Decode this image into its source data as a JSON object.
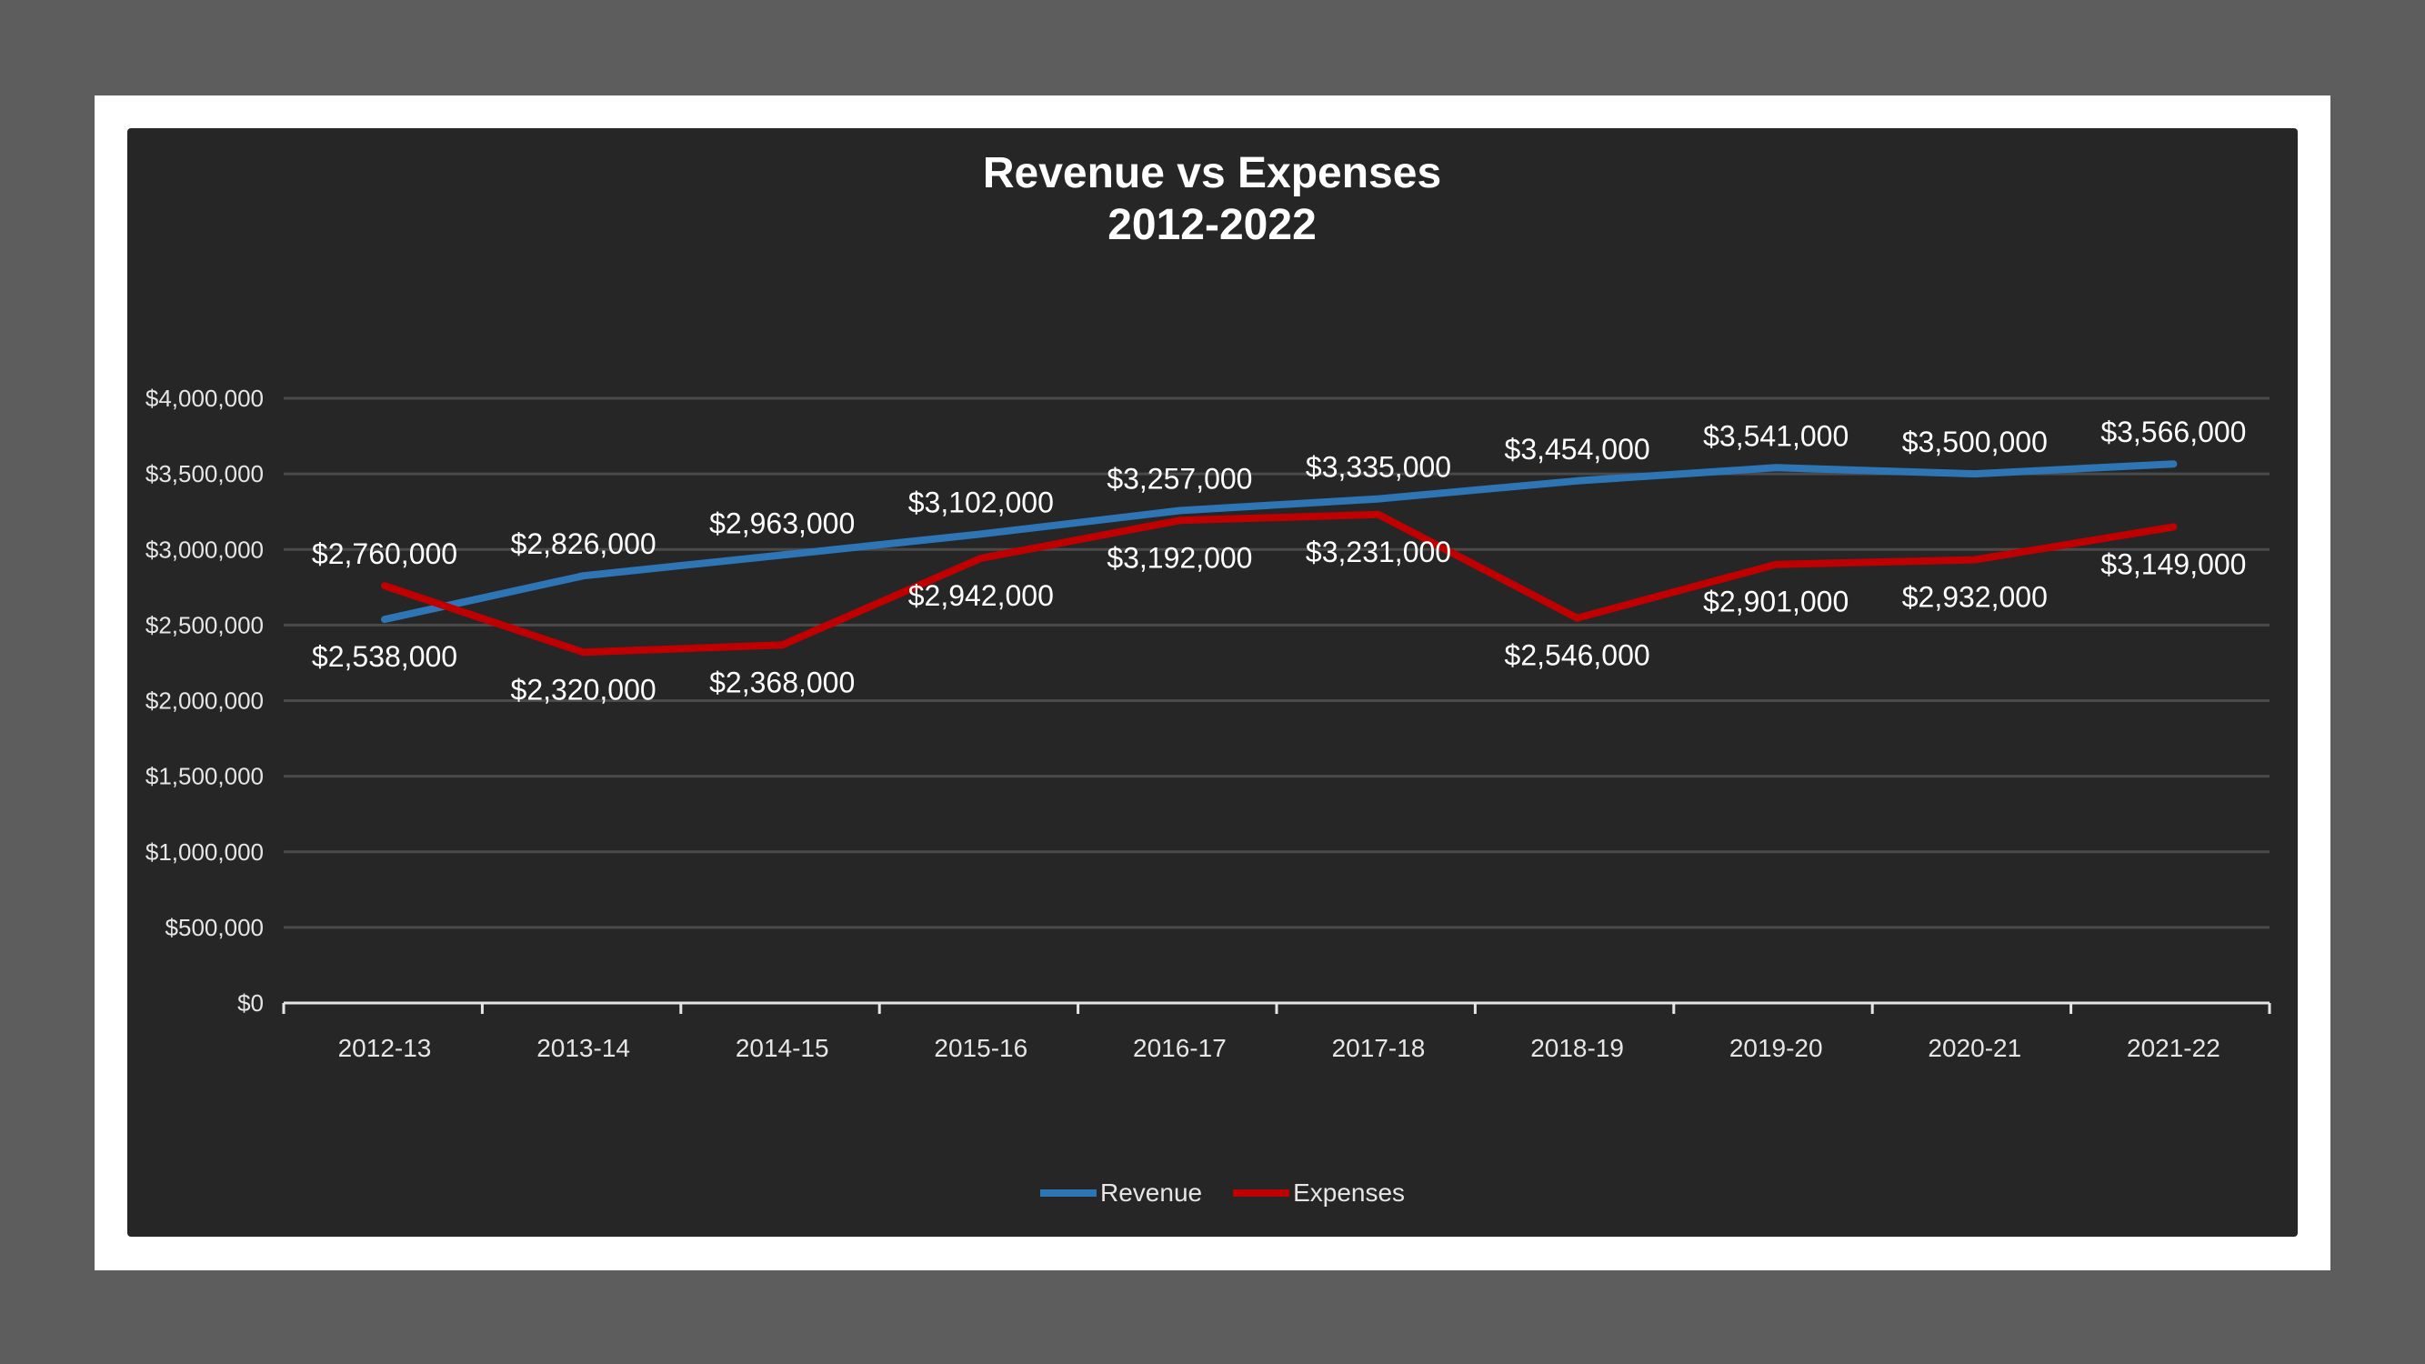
{
  "chart_data": {
    "type": "line",
    "title": [
      "Revenue vs Expenses",
      "2012-2022"
    ],
    "categories": [
      "2012-13",
      "2013-14",
      "2014-15",
      "2015-16",
      "2016-17",
      "2017-18",
      "2018-19",
      "2019-20",
      "2020-21",
      "2021-22"
    ],
    "series": [
      {
        "name": "Revenue",
        "color": "#2e75b6",
        "values": [
          2538000,
          2826000,
          2963000,
          3102000,
          3257000,
          3335000,
          3454000,
          3541000,
          3500000,
          3566000
        ],
        "labels": [
          "$2,538,000",
          "$2,826,000",
          "$2,963,000",
          "$3,102,000",
          "$3,257,000",
          "$3,335,000",
          "$3,454,000",
          "$3,541,000",
          "$3,500,000",
          "$3,566,000"
        ]
      },
      {
        "name": "Expenses",
        "color": "#c00000",
        "values": [
          2760000,
          2320000,
          2368000,
          2942000,
          3192000,
          3231000,
          2546000,
          2901000,
          2932000,
          3149000
        ],
        "labels": [
          "$2,760,000",
          "$2,320,000",
          "$2,368,000",
          "$2,942,000",
          "$3,192,000",
          "$3,231,000",
          "$2,546,000",
          "$2,901,000",
          "$2,932,000",
          "$3,149,000"
        ]
      }
    ],
    "y_ticks": [
      "$0",
      "$500,000",
      "$1,000,000",
      "$1,500,000",
      "$2,000,000",
      "$2,500,000",
      "$3,000,000",
      "$3,500,000",
      "$4,000,000"
    ],
    "ylim": [
      0,
      4000000
    ],
    "grid": true,
    "legend_position": "bottom"
  }
}
